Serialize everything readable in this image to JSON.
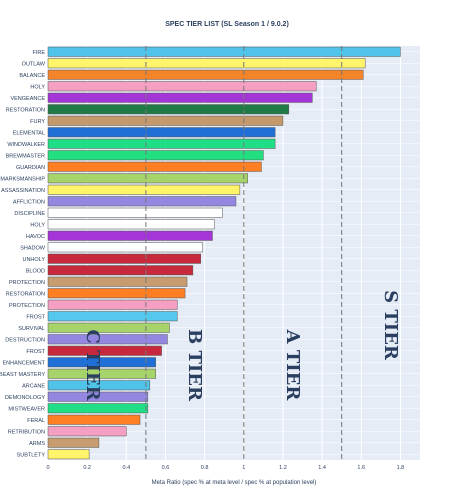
{
  "chart_data": {
    "type": "bar",
    "orientation": "horizontal",
    "title": "SPEC TIER LIST (SL Season 1 / 9.0.2)",
    "xlabel": "Meta Ratio (spec % at meta level / spec % at population level)",
    "ylabel": "",
    "xlim": [
      0,
      1.9
    ],
    "xticks": [
      "0",
      "0.2",
      "0.4",
      "0.6",
      "0.8",
      "1",
      "1.2",
      "1.4",
      "1.6",
      "1.8"
    ],
    "grid": true,
    "legend": "none",
    "categories": [
      "FIRE",
      "OUTLAW",
      "BALANCE",
      "HOLY",
      "VENGEANCE",
      "RESTORATION",
      "FURY",
      "ELEMENTAL",
      "WINDWALKER",
      "BREWMASTER",
      "GUARDIAN",
      "MARKSMANSHIP",
      "ASSASSINATION",
      "AFFLICTION",
      "DISCIPLINE",
      "HOLY",
      "HAVOC",
      "SHADOW",
      "UNHOLY",
      "BLOOD",
      "PROTECTION",
      "RESTORATION",
      "PROTECTION",
      "FROST",
      "SURVIVAL",
      "DESTRUCTION",
      "FROST",
      "ENHANCEMENT",
      "BEAST MASTERY",
      "ARCANE",
      "DEMONOLOGY",
      "MISTWEAVER",
      "FERAL",
      "RETRIBUTION",
      "ARMS",
      "SUBTLETY"
    ],
    "values": [
      1.8,
      1.62,
      1.61,
      1.37,
      1.35,
      1.23,
      1.2,
      1.16,
      1.16,
      1.1,
      1.09,
      1.02,
      0.98,
      0.96,
      0.89,
      0.85,
      0.84,
      0.79,
      0.78,
      0.74,
      0.71,
      0.7,
      0.66,
      0.66,
      0.62,
      0.61,
      0.58,
      0.55,
      0.55,
      0.52,
      0.51,
      0.51,
      0.47,
      0.4,
      0.26,
      0.21
    ],
    "colors": [
      "#4fc3e8",
      "#fff46a",
      "#f4842a",
      "#f59fc3",
      "#a435d6",
      "#1f7a45",
      "#c49a6c",
      "#1f6fd6",
      "#1fde86",
      "#22e07f",
      "#ff7f22",
      "#a7d46a",
      "#fff46a",
      "#9387e2",
      "#ffffff",
      "#ffffff",
      "#a435d6",
      "#ffffff",
      "#c8283c",
      "#c8283c",
      "#c79c6e",
      "#ff7f22",
      "#f59fc3",
      "#55c8ee",
      "#a7d46a",
      "#9387e2",
      "#c8283c",
      "#1f6fd6",
      "#a7d46a",
      "#4fc3e8",
      "#9387e2",
      "#1fde86",
      "#ff7f22",
      "#f59fc3",
      "#c79c6e",
      "#fff46a"
    ],
    "reference_lines": [
      0.5,
      1.0,
      1.5
    ],
    "tiers": [
      {
        "label": "C TIER",
        "x": 0.2
      },
      {
        "label": "B TIER",
        "x": 0.72
      },
      {
        "label": "A TIER",
        "x": 1.22
      },
      {
        "label": "S TIER",
        "x": 1.72
      }
    ]
  }
}
